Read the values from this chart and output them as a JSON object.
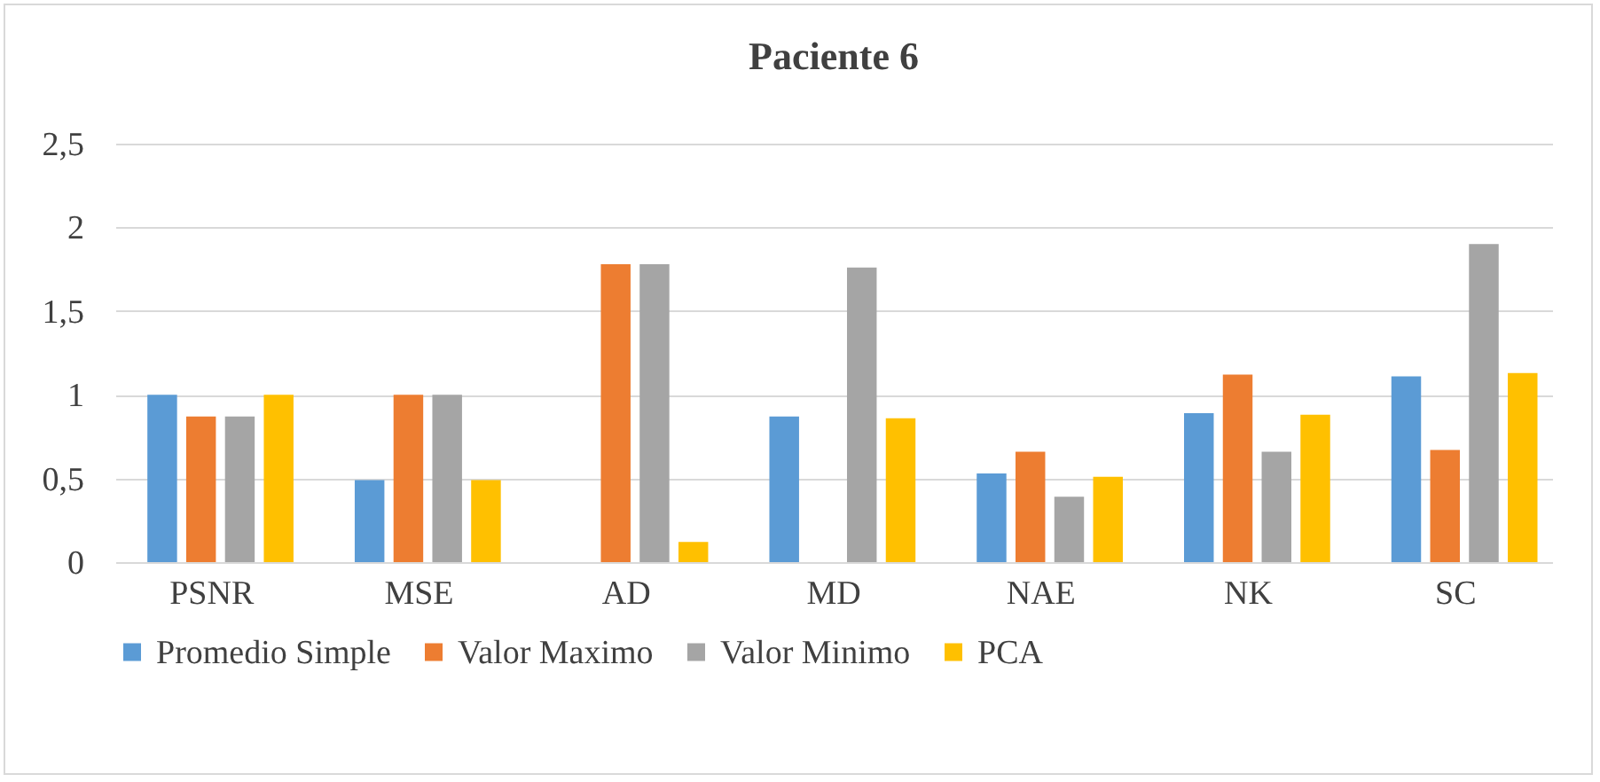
{
  "chart_data": {
    "type": "bar",
    "title": "Paciente 6",
    "categories": [
      "PSNR",
      "MSE",
      "AD",
      "MD",
      "NAE",
      "NK",
      "SC"
    ],
    "series": [
      {
        "name": "Promedio Simple",
        "color": "#5b9bd5",
        "values": [
          1,
          0.49,
          0,
          0.87,
          0.53,
          0.89,
          1.11
        ]
      },
      {
        "name": "Valor Maximo",
        "color": "#ed7d31",
        "values": [
          0.87,
          1,
          1.78,
          0,
          0.66,
          1.12,
          0.67
        ]
      },
      {
        "name": "Valor Minimo",
        "color": "#a5a5a5",
        "values": [
          0.87,
          1,
          1.78,
          1.76,
          0.39,
          0.66,
          1.9
        ]
      },
      {
        "name": "PCA",
        "color": "#ffc000",
        "values": [
          1,
          0.49,
          0.12,
          0.86,
          0.51,
          0.88,
          1.13
        ]
      }
    ],
    "ylim": [
      0,
      2.5
    ],
    "yticks": [
      0,
      {
        "value": 0.5,
        "label": "0,5"
      },
      1,
      {
        "value": 1.5,
        "label": "1,5"
      },
      2,
      {
        "value": 2.5,
        "label": "2,5"
      }
    ],
    "grid": "y",
    "legend": "bottom"
  }
}
